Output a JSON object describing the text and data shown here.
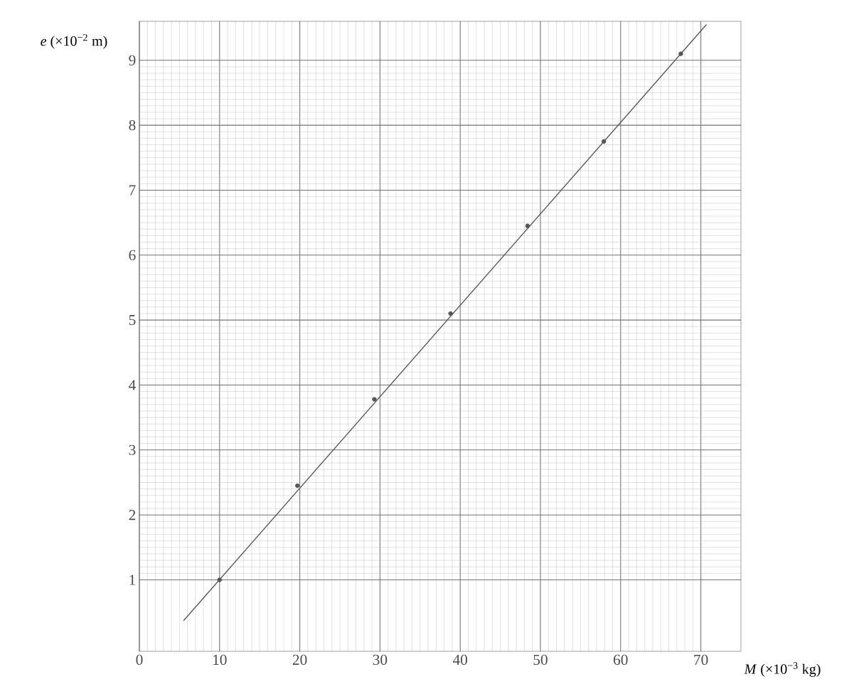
{
  "chart_data": {
    "type": "scatter",
    "xlabel": "*M* (×10$^{−3}$ kg)",
    "ylabel": "*e* (×10$^{−2}$ m)",
    "series": [
      {
        "color": "#555555",
        "marker": "circle",
        "x": [
          10,
          19.7,
          29.3,
          38.8,
          48.4,
          57.9,
          67.5
        ],
        "values": [
          1.0,
          2.45,
          3.78,
          5.1,
          6.45,
          7.75,
          9.1
        ]
      },
      {
        "type": "line",
        "color": "#555555",
        "marker": "none",
        "line_style": "solid",
        "x": [
          5.5,
          70.7
        ],
        "values": [
          0.37,
          9.55
        ]
      }
    ],
    "xlim": [
      0,
      75
    ],
    "ylim": [
      -0.1,
      9.6
    ],
    "xticks": [
      0,
      10,
      20,
      30,
      40,
      50,
      60,
      70
    ],
    "yticks": [
      1,
      2,
      3,
      4,
      5,
      6,
      7,
      8,
      9
    ],
    "grid": true
  }
}
